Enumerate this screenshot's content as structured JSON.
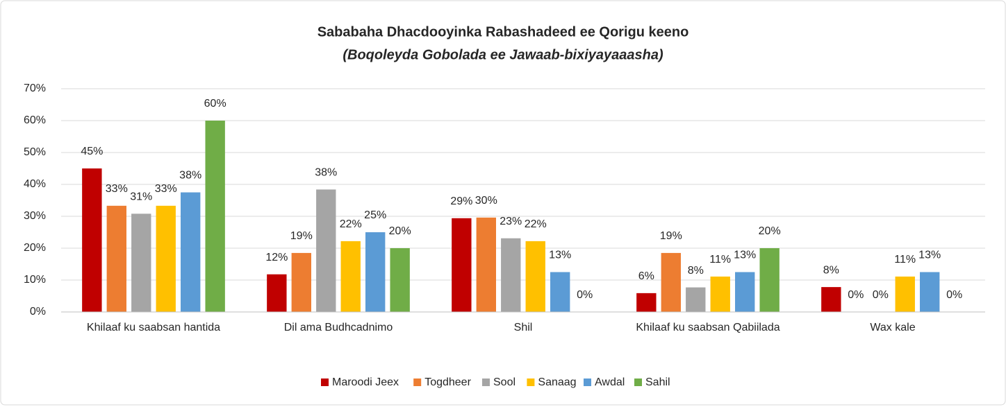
{
  "chart_data": {
    "type": "bar",
    "title": "Sababaha Dhacdooyinka Rabashadeed ee Qorigu keeno",
    "subtitle": "(Boqoleyda  Gobolada ee Jawaab-bixiyayaaasha)",
    "categories": [
      "Khilaaf ku saabsan hantida",
      "Dil ama Budhcadnimo",
      "Shil",
      "Khilaaf ku saabsan Qabiilada",
      "Wax kale"
    ],
    "series": [
      {
        "name": "Maroodi Jeex",
        "color": "#c00000",
        "values": [
          45,
          11.8,
          29.4,
          5.9,
          7.8
        ],
        "value_labels": [
          "45%",
          "12%",
          "29%",
          "6%",
          "8%"
        ]
      },
      {
        "name": "Togdheer",
        "color": "#ed7d31",
        "values": [
          33.3,
          18.5,
          29.6,
          18.5,
          0
        ],
        "value_labels": [
          "33%",
          "19%",
          "30%",
          "19%",
          "0%"
        ]
      },
      {
        "name": "Sool",
        "color": "#a5a5a5",
        "values": [
          30.8,
          38.4,
          23.1,
          7.7,
          0
        ],
        "value_labels": [
          "31%",
          "38%",
          "23%",
          "8%",
          "0%"
        ]
      },
      {
        "name": "Sanaag",
        "color": "#ffc000",
        "values": [
          33.3,
          22.2,
          22.2,
          11.1,
          11.1
        ],
        "value_labels": [
          "33%",
          "22%",
          "22%",
          "11%",
          "11%"
        ]
      },
      {
        "name": "Awdal",
        "color": "#5b9bd5",
        "values": [
          37.5,
          25,
          12.5,
          12.5,
          12.5
        ],
        "value_labels": [
          "38%",
          "25%",
          "13%",
          "13%",
          "13%"
        ]
      },
      {
        "name": "Sahil",
        "color": "#70ad47",
        "values": [
          60,
          20,
          0,
          20,
          0
        ],
        "value_labels": [
          "60%",
          "20%",
          "0%",
          "20%",
          "0%"
        ]
      }
    ],
    "ylim": [
      0,
      70
    ],
    "yticks": [
      {
        "value": 0,
        "label": "0%"
      },
      {
        "value": 10,
        "label": "10%"
      },
      {
        "value": 20,
        "label": "20%"
      },
      {
        "value": 30,
        "label": "30%"
      },
      {
        "value": 40,
        "label": "40%"
      },
      {
        "value": 50,
        "label": "50%"
      },
      {
        "value": 60,
        "label": "60%"
      },
      {
        "value": 70,
        "label": "70%"
      }
    ],
    "grid": true,
    "legend": "bottom"
  }
}
